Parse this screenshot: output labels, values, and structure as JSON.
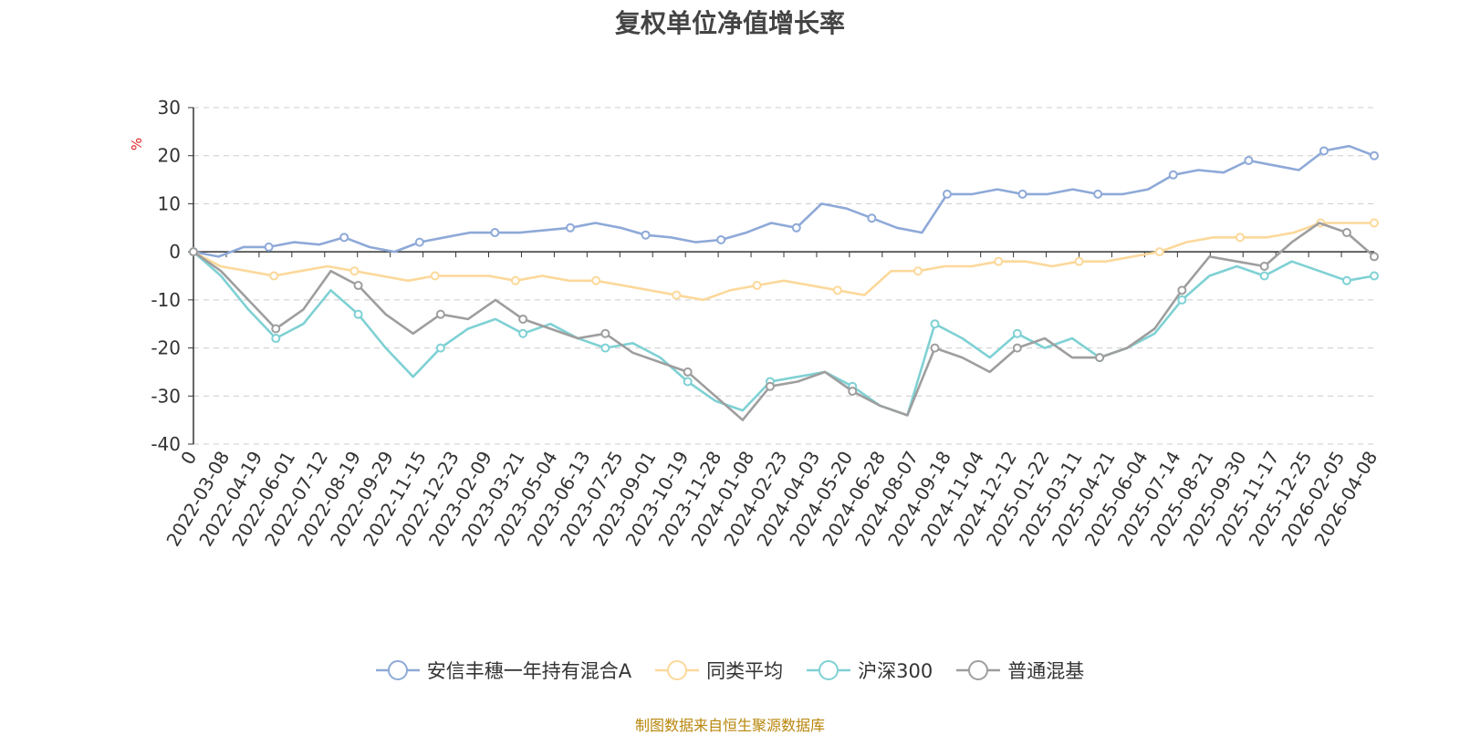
{
  "chart_data": {
    "type": "line",
    "title": "复权单位净值增长率",
    "ylabel": "%",
    "ylim": [
      -40,
      30
    ],
    "yticks": [
      30,
      20,
      10,
      0,
      -10,
      -20,
      -30,
      -40
    ],
    "grid": true,
    "legend_position": "bottom",
    "x_tick_labels": [
      "0",
      "2022-03-08",
      "2022-04-19",
      "2022-06-01",
      "2022-07-12",
      "2022-08-19",
      "2022-09-29",
      "2022-11-15",
      "2022-12-23",
      "2023-02-09",
      "2023-03-21",
      "2023-05-04",
      "2023-06-13",
      "2023-07-25",
      "2023-09-01",
      "2023-10-19",
      "2023-11-28",
      "2024-01-08",
      "2024-02-23",
      "2024-04-03",
      "2024-05-20",
      "2024-06-28",
      "2024-08-07",
      "2024-09-18",
      "2024-11-04",
      "2024-12-12",
      "2025-01-22",
      "2025-03-11",
      "2025-04-21",
      "2025-06-04",
      "2025-07-14",
      "2025-08-21",
      "2025-09-30",
      "2025-11-17",
      "2025-12-25",
      "2026-02-05",
      "2026-04-08"
    ],
    "series": [
      {
        "name": "安信丰穗一年持有混合A",
        "color": "#8ea9d8",
        "values": [
          0,
          -1,
          1,
          1,
          2,
          1.5,
          3,
          1,
          0,
          2,
          3,
          4,
          4,
          4,
          4.5,
          5,
          6,
          5,
          3.5,
          3,
          2,
          2.5,
          4,
          6,
          5,
          10,
          9,
          7,
          5,
          4,
          12,
          12,
          13,
          12,
          12,
          13,
          12,
          12,
          13,
          16,
          17,
          16.5,
          19,
          18,
          17,
          21,
          22,
          20
        ]
      },
      {
        "name": "同类平均",
        "color": "#fcd89a",
        "values": [
          0,
          -3,
          -4,
          -5,
          -4,
          -3,
          -4,
          -5,
          -6,
          -5,
          -5,
          -5,
          -6,
          -5,
          -6,
          -6,
          -7,
          -8,
          -9,
          -10,
          -8,
          -7,
          -6,
          -7,
          -8,
          -9,
          -4,
          -4,
          -3,
          -3,
          -2,
          -2,
          -3,
          -2,
          -2,
          -1,
          0,
          2,
          3,
          3,
          3,
          4,
          6,
          6,
          6
        ]
      },
      {
        "name": "沪深300",
        "color": "#7fd1d4",
        "values": [
          0,
          -5,
          -12,
          -18,
          -15,
          -8,
          -13,
          -20,
          -26,
          -20,
          -16,
          -14,
          -17,
          -15,
          -18,
          -20,
          -19,
          -22,
          -27,
          -31,
          -33,
          -27,
          -26,
          -25,
          -28,
          -32,
          -34,
          -15,
          -18,
          -22,
          -17,
          -20,
          -18,
          -22,
          -20,
          -17,
          -10,
          -5,
          -3,
          -5,
          -2,
          -4,
          -6,
          -5
        ]
      },
      {
        "name": "普通混基",
        "color": "#9e9e9e",
        "values": [
          0,
          -4,
          -10,
          -16,
          -12,
          -4,
          -7,
          -13,
          -17,
          -13,
          -14,
          -10,
          -14,
          -16,
          -18,
          -17,
          -21,
          -23,
          -25,
          -30,
          -35,
          -28,
          -27,
          -25,
          -29,
          -32,
          -34,
          -20,
          -22,
          -25,
          -20,
          -18,
          -22,
          -22,
          -20,
          -16,
          -8,
          -1,
          -2,
          -3,
          2,
          6,
          4,
          -1
        ]
      }
    ]
  },
  "legend": {
    "items": [
      {
        "label": "安信丰穗一年持有混合A",
        "color": "#8ea9d8"
      },
      {
        "label": "同类平均",
        "color": "#fcd89a"
      },
      {
        "label": "沪深300",
        "color": "#7fd1d4"
      },
      {
        "label": "普通混基",
        "color": "#9e9e9e"
      }
    ]
  },
  "footer": {
    "source": "制图数据来自恒生聚源数据库"
  }
}
